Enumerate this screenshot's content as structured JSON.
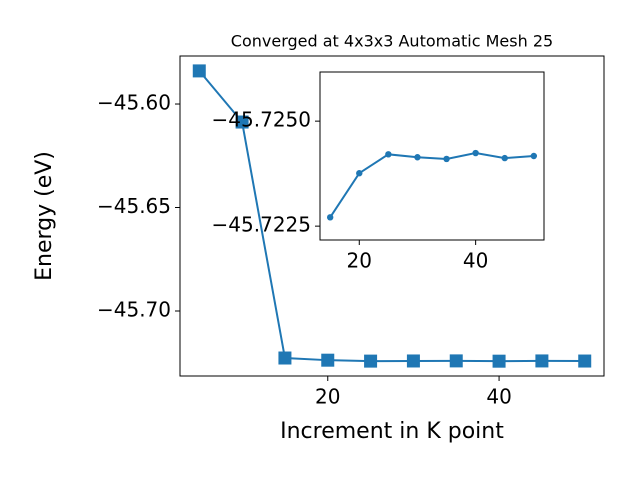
{
  "chart_data": [
    {
      "type": "line",
      "title": "Converged at 4x3x3 Automatic Mesh 25",
      "x_label": "Increment in K point",
      "y_label": "Energy (eV)",
      "x": [
        5,
        10,
        15,
        20,
        25,
        30,
        35,
        40,
        45,
        50
      ],
      "series": [
        {
          "color": "#1f77b4",
          "marker": "square",
          "values": [
            -45.584,
            -45.6087,
            -45.72271,
            -45.72376,
            -45.72421,
            -45.72414,
            -45.7241,
            -45.72424,
            -45.72412,
            -45.72417
          ]
        }
      ],
      "xlim": [
        2.75,
        52.25
      ],
      "ylim": [
        -45.7314,
        -45.5768
      ],
      "xticks": [
        20,
        40
      ],
      "yticks": [
        {
          "value": -45.6,
          "label": "−45.60"
        },
        {
          "value": -45.65,
          "label": "−45.65"
        },
        {
          "value": -45.7,
          "label": "−45.70"
        }
      ]
    },
    {
      "type": "line",
      "x": [
        15,
        20,
        25,
        30,
        35,
        40,
        45,
        50
      ],
      "series": [
        {
          "color": "#1f77b4",
          "marker": "circle",
          "values": [
            -45.72271,
            -45.72376,
            -45.72421,
            -45.72414,
            -45.7241,
            -45.72424,
            -45.72412,
            -45.72417
          ]
        }
      ],
      "xlim": [
        13.25,
        51.75
      ],
      "ylim": [
        -45.72217,
        -45.72617
      ],
      "xticks": [
        20,
        40
      ],
      "yticks": [
        {
          "value": -45.725,
          "label": "−45.7250"
        },
        {
          "value": -45.7225,
          "label": "−45.7225"
        }
      ]
    }
  ]
}
